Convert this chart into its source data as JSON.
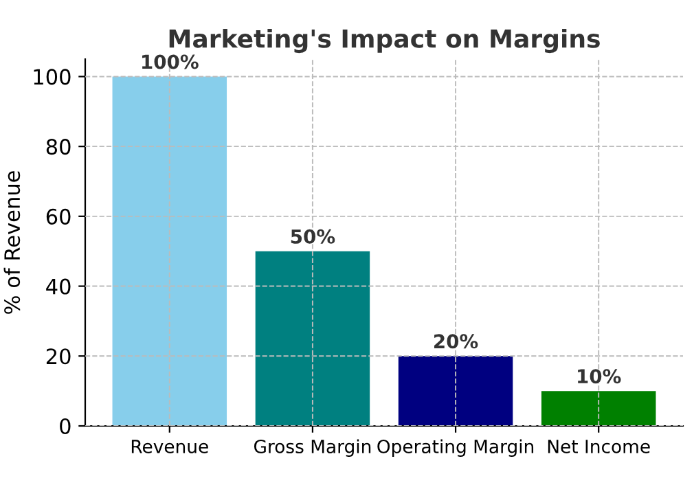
{
  "chart_data": {
    "type": "bar",
    "title": "Marketing's Impact on Margins",
    "ylabel": "% of Revenue",
    "categories": [
      "Revenue",
      "Gross Margin",
      "Operating Margin",
      "Net Income"
    ],
    "values": [
      100,
      50,
      20,
      10
    ],
    "colors": [
      "#87ceeb",
      "#008080",
      "#000080",
      "#008000"
    ],
    "value_labels": [
      "100%",
      "50%",
      "20%",
      "10%"
    ],
    "ylim": [
      0,
      105
    ],
    "yticks": [
      0,
      20,
      40,
      60,
      80,
      100
    ],
    "grid": true
  }
}
